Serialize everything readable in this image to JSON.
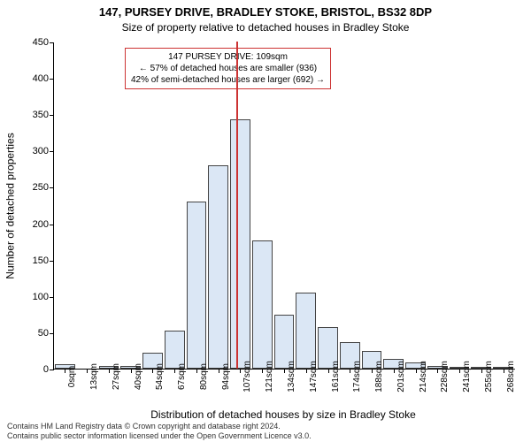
{
  "title_main": "147, PURSEY DRIVE, BRADLEY STOKE, BRISTOL, BS32 8DP",
  "title_sub": "Size of property relative to detached houses in Bradley Stoke",
  "y_axis_label": "Number of detached properties",
  "x_axis_label": "Distribution of detached houses by size in Bradley Stoke",
  "attribution_line1": "Contains HM Land Registry data © Crown copyright and database right 2024.",
  "attribution_line2": "Contains public sector information licensed under the Open Government Licence v3.0.",
  "annotation": {
    "line1": "147 PURSEY DRIVE: 109sqm",
    "line2": "← 57% of detached houses are smaller (936)",
    "line3": "42% of semi-detached houses are larger (692) →"
  },
  "chart": {
    "type": "histogram",
    "y_min": 0,
    "y_max": 450,
    "y_tick_step": 50,
    "x_categories": [
      "0sqm",
      "13sqm",
      "27sqm",
      "40sqm",
      "54sqm",
      "67sqm",
      "80sqm",
      "94sqm",
      "107sqm",
      "121sqm",
      "134sqm",
      "147sqm",
      "161sqm",
      "174sqm",
      "188sqm",
      "201sqm",
      "214sqm",
      "228sqm",
      "241sqm",
      "255sqm",
      "268sqm"
    ],
    "bar_values": [
      6,
      0,
      4,
      4,
      22,
      52,
      230,
      280,
      343,
      176,
      74,
      105,
      57,
      36,
      24,
      14,
      8,
      4,
      1,
      3,
      2
    ],
    "bar_fill_color": "#dbe7f5",
    "bar_stroke_color": "#444444",
    "marker_color": "#cc3333",
    "marker_value_sqm": 109,
    "x_min_sqm": 0,
    "x_max_sqm": 275,
    "background_color": "#ffffff",
    "axis_color": "#000000",
    "tick_fontsize": 11,
    "label_fontsize": 12,
    "title_fontsize": 13
  }
}
